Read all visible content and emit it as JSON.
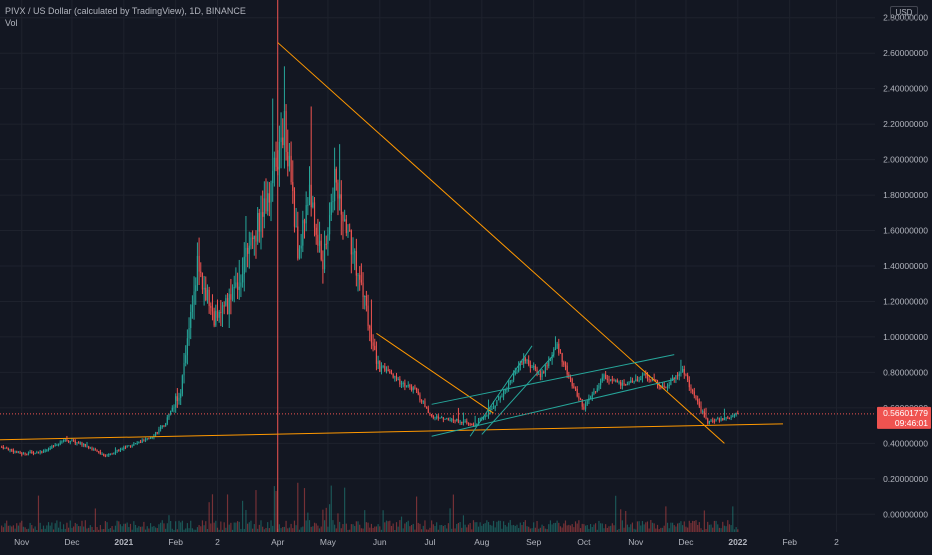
{
  "header": {
    "symbol_line": "PIVX / US Dollar (calculated by TradingView), 1D, BINANCE",
    "volume_label": "Vol",
    "currency_badge": "USD"
  },
  "colors": {
    "background": "#131722",
    "grid": "#1e222d",
    "up": "#26a69a",
    "down": "#ef5350",
    "trendline_orange": "#ff9800",
    "channel_teal": "#26a69a",
    "crosshair_red": "#ef5350",
    "price_tag": "#ef5350"
  },
  "chart_data": {
    "type": "candlestick",
    "title": "PIVX / US Dollar (calculated by TradingView), 1D, BINANCE",
    "y_axis": {
      "ticks": [
        "2.80000000",
        "2.60000000",
        "2.40000000",
        "2.20000000",
        "2.00000000",
        "1.80000000",
        "1.60000000",
        "1.40000000",
        "1.20000000",
        "1.00000000",
        "0.80000000",
        "0.60000000",
        "0.40000000",
        "0.20000000",
        "0.00000000"
      ],
      "ylim": [
        -0.1,
        2.9
      ],
      "unit": "USD"
    },
    "x_axis": {
      "ticks": [
        "Nov",
        "Dec",
        "2021",
        "Feb",
        "2",
        "Apr",
        "May",
        "Jun",
        "Jul",
        "Aug",
        "Sep",
        "Oct",
        "Nov",
        "Dec",
        "2022",
        "Feb",
        "2"
      ],
      "tick_days": [
        0,
        30,
        61,
        92,
        117,
        153,
        183,
        214,
        244,
        275,
        306,
        336,
        367,
        397,
        428,
        459,
        487
      ],
      "xlim_days": [
        -13,
        510
      ]
    },
    "current_price": {
      "value": "0.56601779",
      "countdown": "09:46:01",
      "numeric": 0.566
    },
    "price_anchors": [
      {
        "day": -12,
        "price": 0.38
      },
      {
        "day": 0,
        "price": 0.34
      },
      {
        "day": 15,
        "price": 0.36
      },
      {
        "day": 25,
        "price": 0.42
      },
      {
        "day": 35,
        "price": 0.4
      },
      {
        "day": 50,
        "price": 0.33
      },
      {
        "day": 62,
        "price": 0.38
      },
      {
        "day": 75,
        "price": 0.42
      },
      {
        "day": 85,
        "price": 0.5
      },
      {
        "day": 95,
        "price": 0.7
      },
      {
        "day": 105,
        "price": 1.4
      },
      {
        "day": 115,
        "price": 1.1
      },
      {
        "day": 125,
        "price": 1.2
      },
      {
        "day": 140,
        "price": 1.6
      },
      {
        "day": 150,
        "price": 1.9
      },
      {
        "day": 157,
        "price": 2.2
      },
      {
        "day": 165,
        "price": 1.5
      },
      {
        "day": 172,
        "price": 1.8
      },
      {
        "day": 180,
        "price": 1.4
      },
      {
        "day": 187,
        "price": 1.9
      },
      {
        "day": 195,
        "price": 1.6
      },
      {
        "day": 205,
        "price": 1.2
      },
      {
        "day": 212,
        "price": 0.85
      },
      {
        "day": 225,
        "price": 0.75
      },
      {
        "day": 235,
        "price": 0.7
      },
      {
        "day": 245,
        "price": 0.55
      },
      {
        "day": 260,
        "price": 0.53
      },
      {
        "day": 270,
        "price": 0.5
      },
      {
        "day": 280,
        "price": 0.58
      },
      {
        "day": 290,
        "price": 0.72
      },
      {
        "day": 300,
        "price": 0.88
      },
      {
        "day": 310,
        "price": 0.78
      },
      {
        "day": 320,
        "price": 0.95
      },
      {
        "day": 328,
        "price": 0.75
      },
      {
        "day": 336,
        "price": 0.6
      },
      {
        "day": 348,
        "price": 0.78
      },
      {
        "day": 360,
        "price": 0.72
      },
      {
        "day": 372,
        "price": 0.78
      },
      {
        "day": 385,
        "price": 0.72
      },
      {
        "day": 395,
        "price": 0.82
      },
      {
        "day": 402,
        "price": 0.66
      },
      {
        "day": 410,
        "price": 0.52
      },
      {
        "day": 420,
        "price": 0.54
      },
      {
        "day": 428,
        "price": 0.566
      }
    ],
    "trendlines": [
      {
        "name": "descending-resistance",
        "color": "#ff9800",
        "from": {
          "day": 153,
          "price": 2.66
        },
        "to": {
          "day": 420,
          "price": 0.4
        }
      },
      {
        "name": "horizontal-support",
        "color": "#ff9800",
        "from": {
          "day": -13,
          "price": 0.42
        },
        "to": {
          "day": 455,
          "price": 0.51
        }
      },
      {
        "name": "secondary-descending",
        "color": "#ff9800",
        "from": {
          "day": 212,
          "price": 1.02
        },
        "to": {
          "day": 282,
          "price": 0.57
        }
      },
      {
        "name": "channel-upper",
        "color": "#26a69a",
        "from": {
          "day": 245,
          "price": 0.62
        },
        "to": {
          "day": 390,
          "price": 0.9
        }
      },
      {
        "name": "channel-lower",
        "color": "#26a69a",
        "from": {
          "day": 245,
          "price": 0.44
        },
        "to": {
          "day": 390,
          "price": 0.76
        }
      },
      {
        "name": "channel-rise-upper",
        "color": "#26a69a",
        "from": {
          "day": 268,
          "price": 0.44
        },
        "to": {
          "day": 305,
          "price": 0.95
        }
      },
      {
        "name": "channel-rise-lower",
        "color": "#26a69a",
        "from": {
          "day": 275,
          "price": 0.45
        },
        "to": {
          "day": 318,
          "price": 0.9
        }
      }
    ],
    "crosshair_x_day": 153,
    "price_line": 0.566
  }
}
